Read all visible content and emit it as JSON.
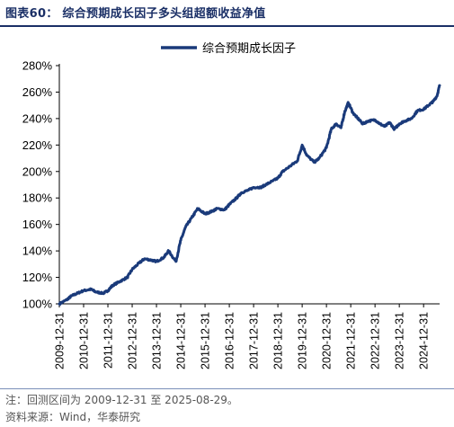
{
  "figure": {
    "title": "图表60：  综合预期成长因子多头组超额收益净值",
    "note": "注：回测区间为 2009-12-31 至 2025-08-29。",
    "source": "资料来源：Wind，华泰研究"
  },
  "chart_data": {
    "type": "line",
    "title": "",
    "xlabel": "",
    "ylabel": "",
    "ylim": [
      100,
      280
    ],
    "y_ticks": [
      "100%",
      "120%",
      "140%",
      "160%",
      "180%",
      "200%",
      "220%",
      "240%",
      "260%",
      "280%"
    ],
    "y_tick_values": [
      100,
      120,
      140,
      160,
      180,
      200,
      220,
      240,
      260,
      280
    ],
    "x_ticks": [
      "2009-12-31",
      "2010-12-31",
      "2011-12-31",
      "2012-12-31",
      "2013-12-31",
      "2014-12-31",
      "2015-12-31",
      "2016-12-31",
      "2017-12-31",
      "2018-12-31",
      "2019-12-31",
      "2020-12-31",
      "2021-12-31",
      "2022-12-31",
      "2023-12-31",
      "2024-12-31"
    ],
    "xlim": [
      2010.0,
      2025.66
    ],
    "grid": false,
    "legend_position": "top-center",
    "line_color": "#1a3a7a",
    "series": [
      {
        "name": "综合预期成长因子",
        "x": [
          2010.0,
          2010.3,
          2010.5,
          2010.75,
          2011.0,
          2011.3,
          2011.5,
          2011.8,
          2012.0,
          2012.2,
          2012.5,
          2012.8,
          2013.0,
          2013.3,
          2013.5,
          2013.8,
          2014.0,
          2014.3,
          2014.5,
          2014.8,
          2015.0,
          2015.2,
          2015.45,
          2015.7,
          2016.0,
          2016.3,
          2016.5,
          2016.8,
          2017.0,
          2017.3,
          2017.5,
          2017.8,
          2018.0,
          2018.3,
          2018.5,
          2018.8,
          2019.0,
          2019.2,
          2019.5,
          2019.8,
          2020.0,
          2020.2,
          2020.5,
          2020.7,
          2021.0,
          2021.2,
          2021.4,
          2021.6,
          2021.75,
          2021.9,
          2022.1,
          2022.3,
          2022.5,
          2022.7,
          2023.0,
          2023.2,
          2023.4,
          2023.6,
          2023.8,
          2024.0,
          2024.2,
          2024.5,
          2024.75,
          2025.0,
          2025.2,
          2025.4,
          2025.55,
          2025.66
        ],
        "values": [
          100,
          103,
          106,
          108,
          110,
          111,
          109,
          108,
          110,
          114,
          117,
          120,
          126,
          131,
          134,
          133,
          132,
          135,
          140,
          132,
          148,
          158,
          165,
          172,
          168,
          170,
          172,
          171,
          175,
          180,
          184,
          186,
          188,
          188,
          190,
          193,
          195,
          200,
          204,
          208,
          220,
          212,
          207,
          210,
          218,
          232,
          236,
          233,
          245,
          252,
          244,
          240,
          236,
          238,
          239,
          236,
          234,
          237,
          232,
          236,
          238,
          240,
          246,
          247,
          250,
          253,
          257,
          265
        ]
      }
    ]
  }
}
